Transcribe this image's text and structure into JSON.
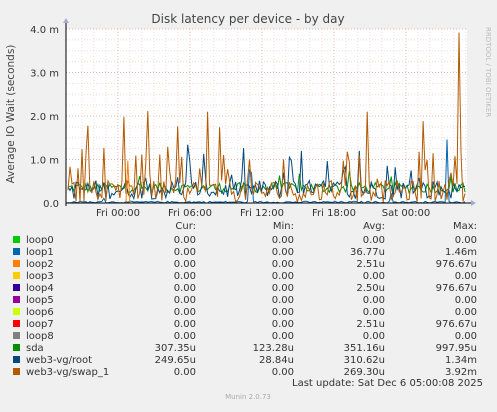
{
  "chart_data": {
    "type": "line",
    "title": "Disk latency per device - by day",
    "ylabel": "Average IO Wait (seconds)",
    "ylim": [
      0,
      0.004
    ],
    "y_ticks": [
      {
        "value": 0,
        "label": "0.0"
      },
      {
        "value": 0.001,
        "label": "1.0 m"
      },
      {
        "value": 0.002,
        "label": "2.0 m"
      },
      {
        "value": 0.003,
        "label": "3.0 m"
      },
      {
        "value": 0.004,
        "label": "4.0 m"
      }
    ],
    "x_ticks": [
      "Fri 00:00",
      "Fri 06:00",
      "Fri 12:00",
      "Fri 18:00",
      "Sat 00:00"
    ],
    "grid": true,
    "side_label": "RRDTOOL / TOBI OETIKER",
    "columns": [
      "Cur:",
      "Min:",
      "Avg:",
      "Max:"
    ],
    "series": [
      {
        "name": "loop0",
        "color": "#00cc00",
        "cur": "0.00",
        "min": "0.00",
        "avg": "0.00",
        "max": "0.00"
      },
      {
        "name": "loop1",
        "color": "#0066b3",
        "cur": "0.00",
        "min": "0.00",
        "avg": "36.77u",
        "max": "1.46m"
      },
      {
        "name": "loop2",
        "color": "#ff8000",
        "cur": "0.00",
        "min": "0.00",
        "avg": "2.51u",
        "max": "976.67u"
      },
      {
        "name": "loop3",
        "color": "#ffcc00",
        "cur": "0.00",
        "min": "0.00",
        "avg": "0.00",
        "max": "0.00"
      },
      {
        "name": "loop4",
        "color": "#330099",
        "cur": "0.00",
        "min": "0.00",
        "avg": "2.50u",
        "max": "976.67u"
      },
      {
        "name": "loop5",
        "color": "#990099",
        "cur": "0.00",
        "min": "0.00",
        "avg": "0.00",
        "max": "0.00"
      },
      {
        "name": "loop6",
        "color": "#ccff00",
        "cur": "0.00",
        "min": "0.00",
        "avg": "0.00",
        "max": "0.00"
      },
      {
        "name": "loop7",
        "color": "#ff0000",
        "cur": "0.00",
        "min": "0.00",
        "avg": "2.51u",
        "max": "976.67u"
      },
      {
        "name": "loop8",
        "color": "#808080",
        "cur": "0.00",
        "min": "0.00",
        "avg": "0.00",
        "max": "0.00"
      },
      {
        "name": "sda",
        "color": "#008f00",
        "cur": "307.35u",
        "min": "123.28u",
        "avg": "351.16u",
        "max": "997.95u"
      },
      {
        "name": "web3-vg/root",
        "color": "#00487d",
        "cur": "249.65u",
        "min": "28.84u",
        "avg": "310.62u",
        "max": "1.34m"
      },
      {
        "name": "web3-vg/swap_1",
        "color": "#b35a00",
        "cur": "0.00",
        "min": "0.00",
        "avg": "269.30u",
        "max": "3.92m"
      }
    ]
  },
  "footer": {
    "last_update": "Last update: Sat Dec  6 05:00:08 2025",
    "munin_version": "Munin 2.0.73"
  }
}
